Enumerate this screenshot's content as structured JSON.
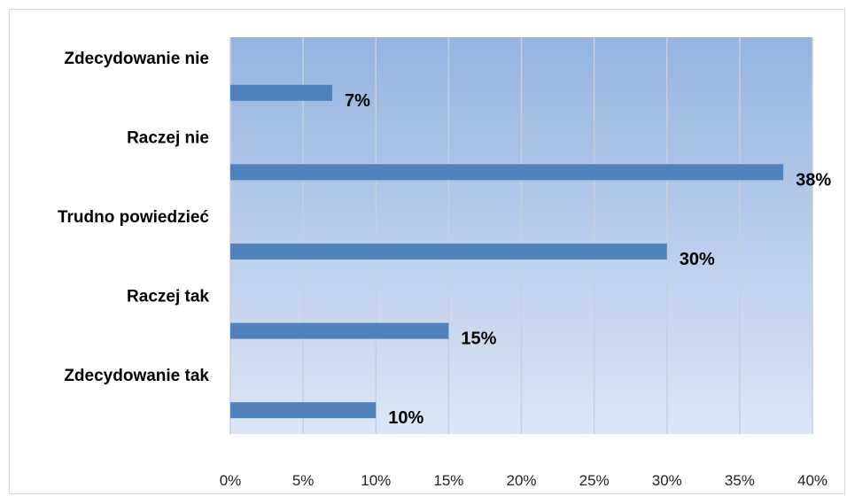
{
  "chart_data": {
    "type": "bar",
    "orientation": "horizontal",
    "categories": [
      "Zdecydowanie nie",
      "Raczej nie",
      "Trudno powiedzieć",
      "Raczej tak",
      "Zdecydowanie tak"
    ],
    "values": [
      7,
      38,
      30,
      15,
      10
    ],
    "data_labels": [
      "7%",
      "38%",
      "30%",
      "15%",
      "10%"
    ],
    "x_ticks": [
      "0%",
      "5%",
      "10%",
      "15%",
      "20%",
      "25%",
      "30%",
      "35%",
      "40%"
    ],
    "xlim": [
      0,
      40
    ],
    "title": "",
    "xlabel": "",
    "ylabel": "",
    "grid": "vertical",
    "legend": "none",
    "bar_color": "#4f81bd",
    "plot_gradient_top": "#95b3e0",
    "plot_gradient_bottom": "#dde6f5",
    "gridline_color": "#c8cedb"
  }
}
